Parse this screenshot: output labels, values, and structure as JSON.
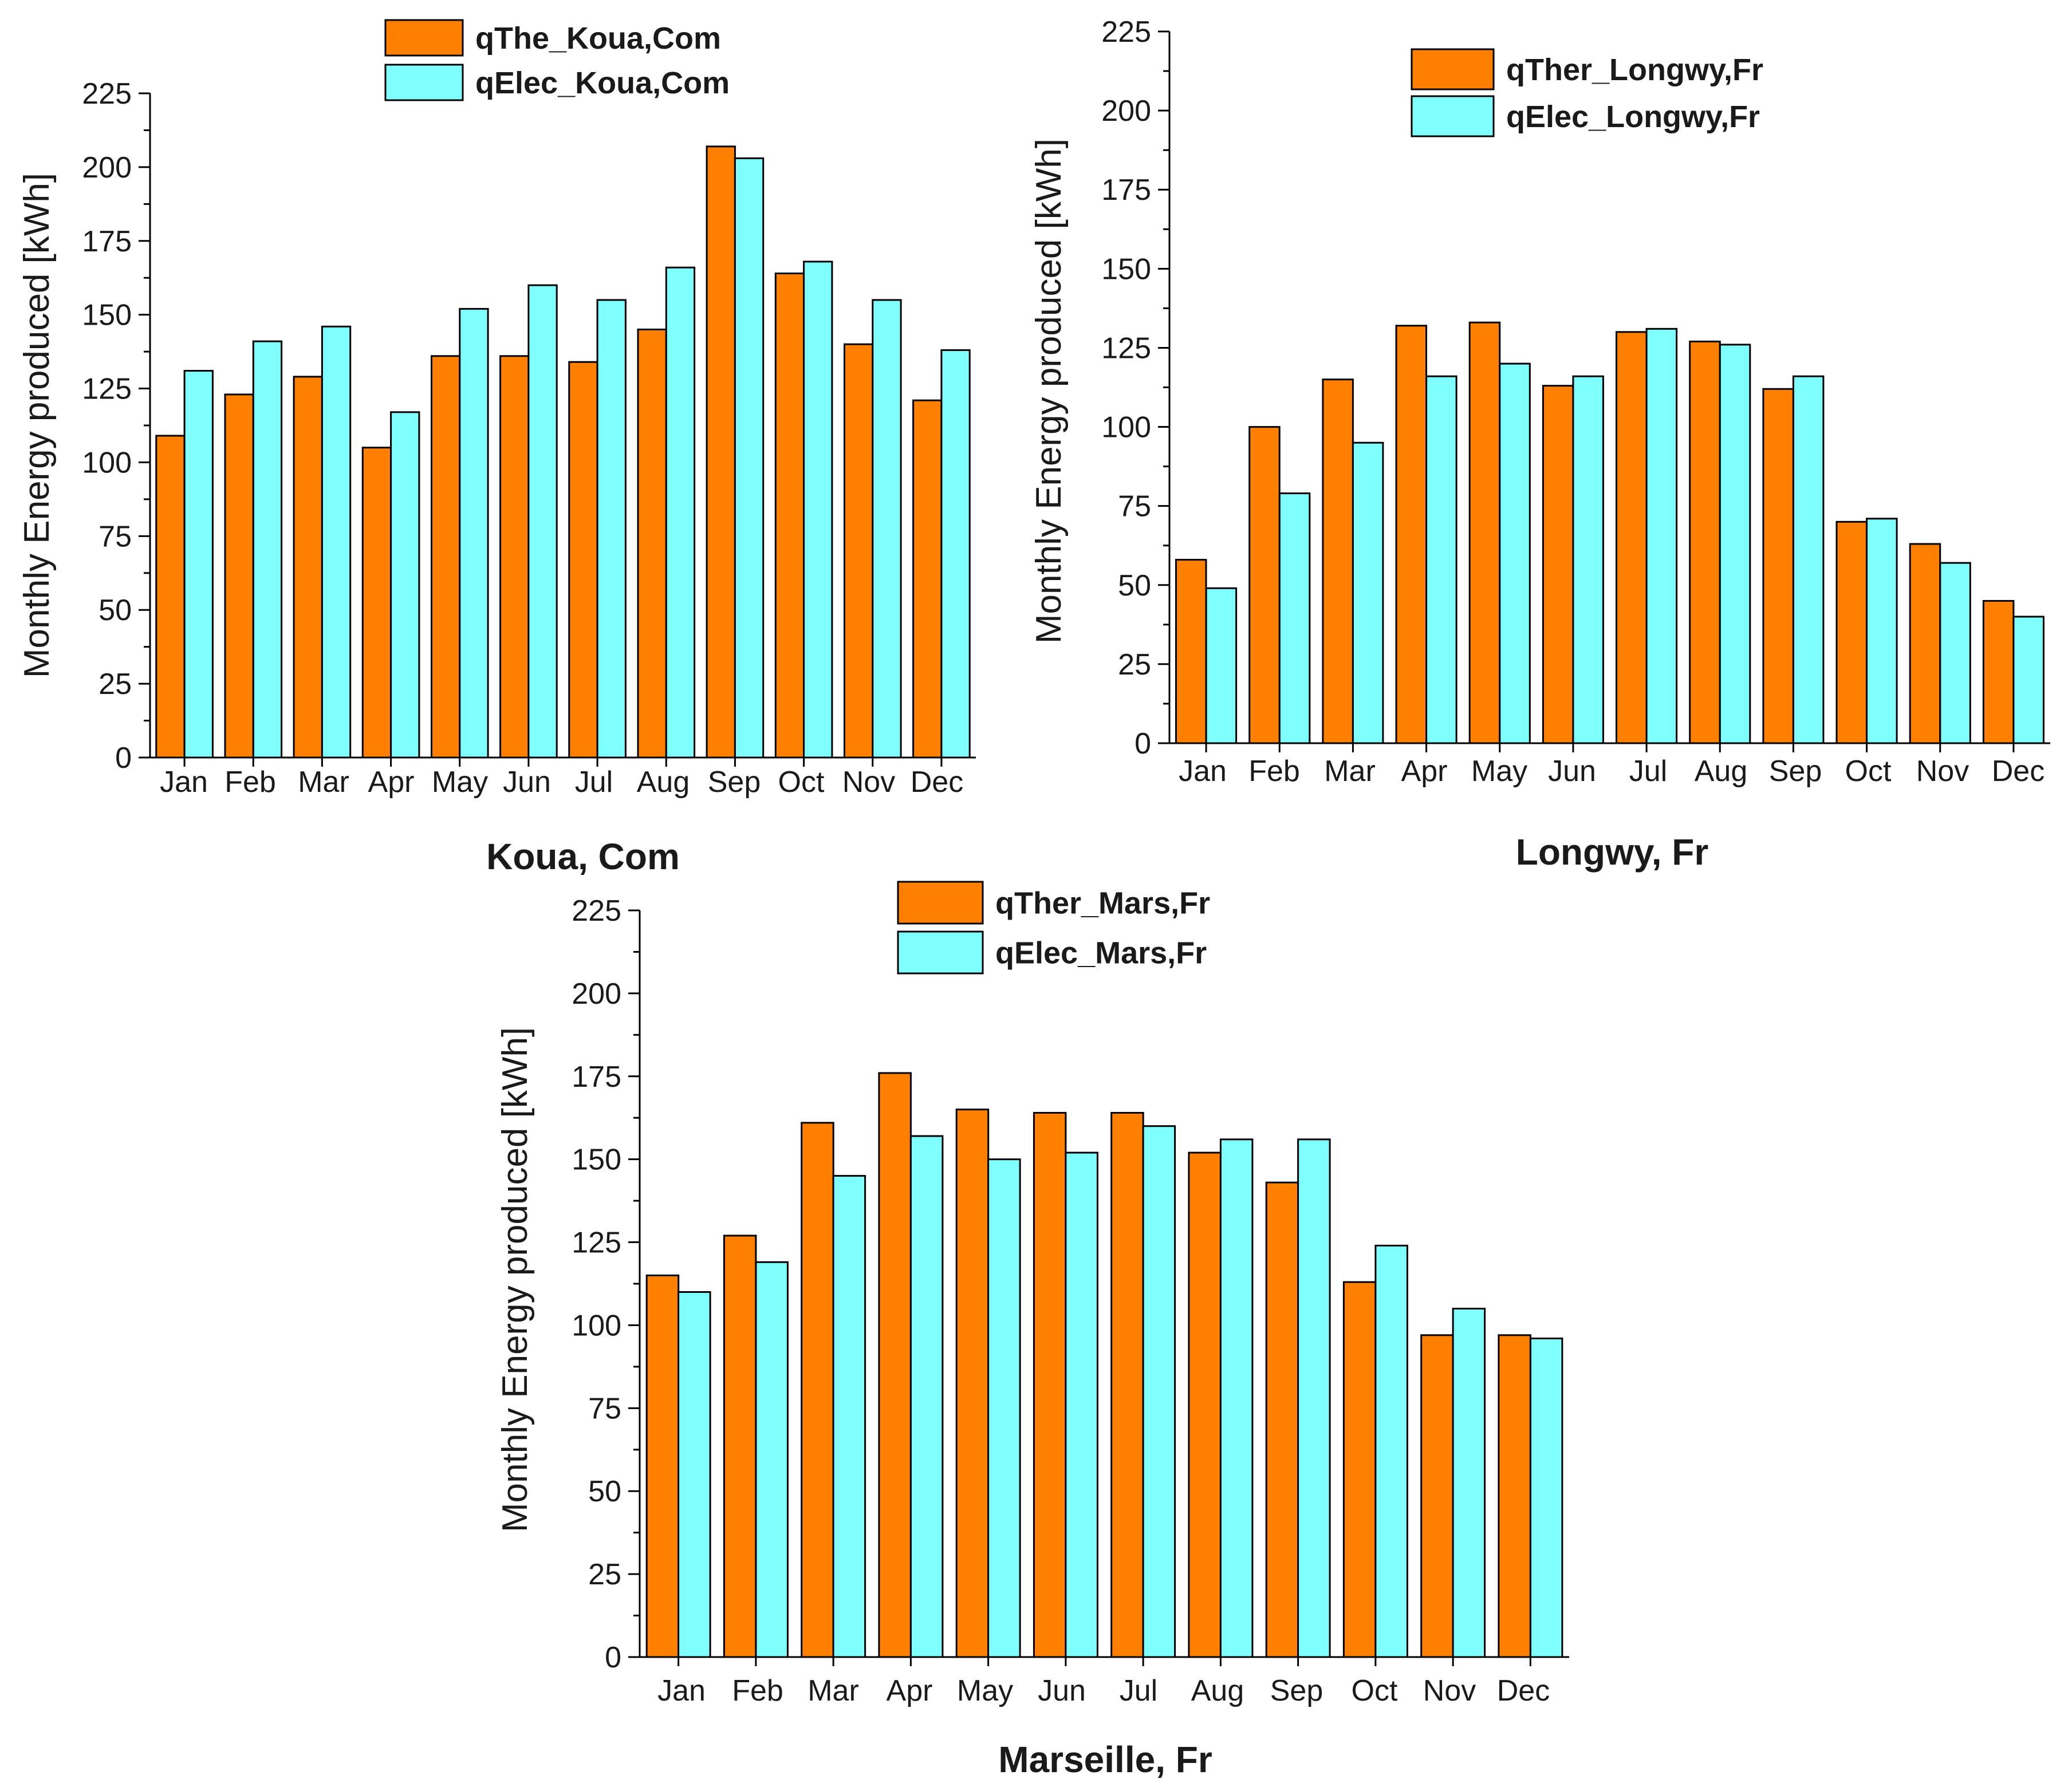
{
  "chart_data": [
    {
      "type": "bar",
      "title": "Koua, Com",
      "xlabel": "",
      "ylabel": "Monthly Energy produced [kWh]",
      "ylim": [
        0,
        225
      ],
      "yticks": [
        0,
        25,
        50,
        75,
        100,
        125,
        150,
        175,
        200,
        225
      ],
      "legend_position": "top-center",
      "categories": [
        "Jan",
        "Feb",
        "Mar",
        "Apr",
        "May",
        "Jun",
        "Jul",
        "Aug",
        "Sep",
        "Oct",
        "Nov",
        "Dec"
      ],
      "series": [
        {
          "name": "qThe_Koua,Com",
          "color": "#ff7f00",
          "values": [
            109,
            123,
            129,
            105,
            136,
            136,
            134,
            145,
            207,
            164,
            140,
            121
          ]
        },
        {
          "name": "qElec_Koua,Com",
          "color": "#80ffff",
          "values": [
            131,
            141,
            146,
            117,
            152,
            160,
            155,
            166,
            203,
            168,
            155,
            138
          ]
        }
      ]
    },
    {
      "type": "bar",
      "title": "Longwy, Fr",
      "xlabel": "",
      "ylabel": "Monthly Energy produced [kWh]",
      "ylim": [
        0,
        225
      ],
      "yticks": [
        0,
        25,
        50,
        75,
        100,
        125,
        150,
        175,
        200,
        225
      ],
      "legend_position": "top-right",
      "categories": [
        "Jan",
        "Feb",
        "Mar",
        "Apr",
        "May",
        "Jun",
        "Jul",
        "Aug",
        "Sep",
        "Oct",
        "Nov",
        "Dec"
      ],
      "series": [
        {
          "name": "qTher_Longwy,Fr",
          "color": "#ff7f00",
          "values": [
            58,
            100,
            115,
            132,
            133,
            113,
            130,
            127,
            112,
            70,
            63,
            45
          ]
        },
        {
          "name": "qElec_Longwy,Fr",
          "color": "#80ffff",
          "values": [
            49,
            79,
            95,
            116,
            120,
            116,
            131,
            126,
            116,
            71,
            57,
            40
          ]
        }
      ]
    },
    {
      "type": "bar",
      "title": "Marseille, Fr",
      "xlabel": "",
      "ylabel": "Monthly Energy produced [kWh]",
      "ylim": [
        0,
        225
      ],
      "yticks": [
        0,
        25,
        50,
        75,
        100,
        125,
        150,
        175,
        200,
        225
      ],
      "legend_position": "top-left",
      "categories": [
        "Jan",
        "Feb",
        "Mar",
        "Apr",
        "May",
        "Jun",
        "Jul",
        "Aug",
        "Sep",
        "Oct",
        "Nov",
        "Dec"
      ],
      "series": [
        {
          "name": "qTher_Mars,Fr",
          "color": "#ff7f00",
          "values": [
            115,
            127,
            161,
            176,
            165,
            164,
            164,
            152,
            143,
            113,
            97,
            97
          ]
        },
        {
          "name": "qElec_Mars,Fr",
          "color": "#80ffff",
          "values": [
            110,
            119,
            145,
            157,
            150,
            152,
            160,
            156,
            156,
            124,
            105,
            96
          ]
        }
      ]
    }
  ]
}
